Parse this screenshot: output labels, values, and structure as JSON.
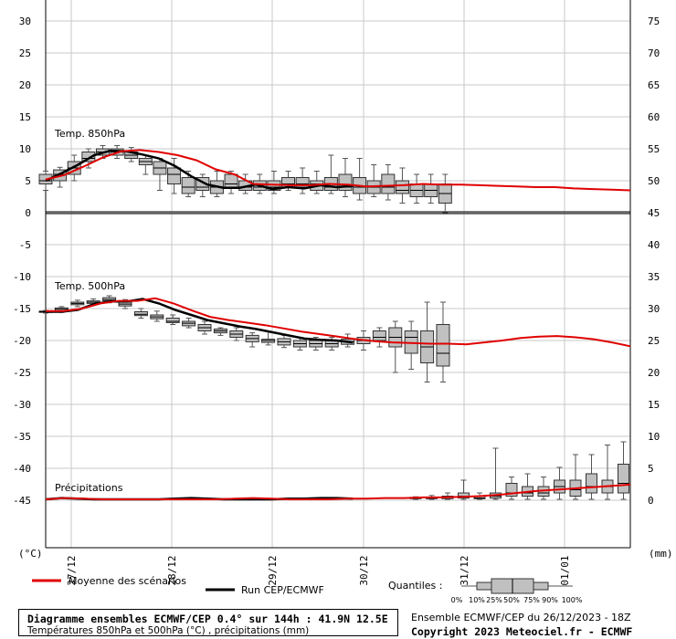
{
  "chart_data": {
    "type": "boxplot",
    "left_axis": {
      "label": "(°C)",
      "ticks": [
        30,
        25,
        20,
        15,
        10,
        5,
        0,
        -5,
        -10,
        -15,
        -20,
        -25,
        -30,
        -35,
        -40,
        -45
      ]
    },
    "right_axis": {
      "label": "(mm)",
      "ticks": [
        75,
        70,
        65,
        60,
        55,
        50,
        45,
        40,
        35,
        30,
        25,
        20,
        15,
        10,
        5,
        0
      ]
    },
    "x_labels": [
      "27/12",
      "28/12",
      "29/12",
      "30/12",
      "31/12",
      "01/01"
    ],
    "grid": true,
    "panels": [
      {
        "label": "Temp. 850hPa",
        "mean": [
          5.2,
          5.9,
          7.2,
          8.6,
          9.6,
          9.8,
          9.5,
          9.0,
          8.2,
          6.8,
          6.0,
          4.5,
          4.4,
          4.3,
          4.3,
          4.5,
          4.4,
          4.1,
          4.2,
          4.3,
          4.5,
          4.4,
          4.4,
          4.3,
          4.2,
          4.1,
          4.0,
          4.0,
          3.8,
          3.7,
          3.6,
          3.5
        ],
        "control": [
          5.0,
          6.2,
          7.5,
          9.0,
          9.7,
          9.6,
          9.1,
          8.5,
          7.3,
          5.7,
          4.4,
          3.9,
          3.9,
          4.4,
          3.7,
          4.0,
          3.8,
          4.3,
          4.0,
          4.2
        ],
        "boxes": [
          [
            3.5,
            4.5,
            5.0,
            6.0,
            6.5
          ],
          [
            4.0,
            5.0,
            6.0,
            6.7,
            7.1
          ],
          [
            5.0,
            6.0,
            7.0,
            8.0,
            9.0
          ],
          [
            7.0,
            8.0,
            8.5,
            9.5,
            10.0
          ],
          [
            8.5,
            9.0,
            9.5,
            10.0,
            10.5
          ],
          [
            8.5,
            9.0,
            9.5,
            10.0,
            10.5
          ],
          [
            8.0,
            8.5,
            9.0,
            9.5,
            10.2
          ],
          [
            6.0,
            7.5,
            8.0,
            8.5,
            9.0
          ],
          [
            3.5,
            6.0,
            7.0,
            8.0,
            8.5
          ],
          [
            3.0,
            4.5,
            6.0,
            7.0,
            8.5
          ],
          [
            2.5,
            3.0,
            4.0,
            5.5,
            6.5
          ],
          [
            2.5,
            3.5,
            4.0,
            5.5,
            6.0
          ],
          [
            2.5,
            3.0,
            4.0,
            5.0,
            6.5
          ],
          [
            3.0,
            4.0,
            4.5,
            6.0,
            6.5
          ],
          [
            3.0,
            3.5,
            4.0,
            5.0,
            6.0
          ],
          [
            3.0,
            3.5,
            4.0,
            5.0,
            6.0
          ],
          [
            3.0,
            3.5,
            4.0,
            5.0,
            6.5
          ],
          [
            3.5,
            4.0,
            4.5,
            5.5,
            6.5
          ],
          [
            3.0,
            4.0,
            4.5,
            5.5,
            7.0
          ],
          [
            3.0,
            3.5,
            4.5,
            5.0,
            6.5
          ],
          [
            3.0,
            3.5,
            4.0,
            5.5,
            9.0
          ],
          [
            2.5,
            3.5,
            4.0,
            6.0,
            8.5
          ],
          [
            2.0,
            3.0,
            4.0,
            5.5,
            8.5
          ],
          [
            2.5,
            3.0,
            4.0,
            5.0,
            7.5
          ],
          [
            2.0,
            3.0,
            4.0,
            6.0,
            7.5
          ],
          [
            1.5,
            3.0,
            3.5,
            5.0,
            7.0
          ],
          [
            1.5,
            2.5,
            3.5,
            4.5,
            6.0
          ],
          [
            1.5,
            2.5,
            3.5,
            4.5,
            6.0
          ],
          [
            0.0,
            1.5,
            3.0,
            4.5,
            6.0
          ]
        ]
      },
      {
        "label": "Temp. 500hPa",
        "mean": [
          -15.4,
          -15.4,
          -15.0,
          -14.2,
          -13.8,
          -13.8,
          -13.4,
          -14.2,
          -15.3,
          -16.3,
          -16.8,
          -17.2,
          -17.6,
          -18.1,
          -18.6,
          -19.0,
          -19.4,
          -19.8,
          -20.1,
          -20.3,
          -20.4,
          -20.5,
          -20.5,
          -20.6,
          -20.3,
          -20.0,
          -19.6,
          -19.4,
          -19.3,
          -19.5,
          -19.8,
          -20.3,
          -20.9
        ],
        "control": [
          -15.5,
          -15.5,
          -15.2,
          -14.3,
          -13.9,
          -13.9,
          -13.5,
          -14.2,
          -15.2,
          -16.0,
          -16.8,
          -17.3,
          -17.8,
          -18.2,
          -18.7,
          -19.2,
          -19.7,
          -19.9,
          -20.0,
          -20.3
        ],
        "boxes": [
          [
            -15.7,
            -15.6,
            -15.5,
            -15.4,
            -15.3
          ],
          [
            -15.6,
            -15.4,
            -15.1,
            -14.9,
            -14.7
          ],
          [
            -14.7,
            -14.4,
            -14.2,
            -14.0,
            -13.7
          ],
          [
            -14.5,
            -14.2,
            -14.0,
            -13.8,
            -13.5
          ],
          [
            -14.1,
            -13.8,
            -13.6,
            -13.3,
            -13.0
          ],
          [
            -15.0,
            -14.6,
            -14.3,
            -14.0,
            -13.6
          ],
          [
            -16.5,
            -16.1,
            -15.9,
            -15.5,
            -15.0
          ],
          [
            -17.0,
            -16.6,
            -16.3,
            -16.0,
            -15.4
          ],
          [
            -17.5,
            -17.2,
            -17.0,
            -16.5,
            -16.0
          ],
          [
            -18.0,
            -17.7,
            -17.3,
            -17.0,
            -16.5
          ],
          [
            -19.0,
            -18.5,
            -18.0,
            -17.5,
            -17.0
          ],
          [
            -19.2,
            -18.8,
            -18.5,
            -18.2,
            -18.0
          ],
          [
            -20.0,
            -19.5,
            -19.0,
            -18.5,
            -18.0
          ],
          [
            -21.0,
            -20.2,
            -19.7,
            -19.2,
            -18.8
          ],
          [
            -20.7,
            -20.3,
            -20.0,
            -19.8,
            -18.6
          ],
          [
            -21.1,
            -20.7,
            -20.2,
            -19.7,
            -19.2
          ],
          [
            -21.5,
            -21.0,
            -20.5,
            -20.0,
            -19.5
          ],
          [
            -21.5,
            -21.0,
            -20.5,
            -20.0,
            -19.5
          ],
          [
            -21.5,
            -21.0,
            -20.5,
            -20.0,
            -19.5
          ],
          [
            -21.0,
            -20.6,
            -20.2,
            -19.8,
            -19.0
          ],
          [
            -21.5,
            -20.5,
            -20.0,
            -19.5,
            -18.5
          ],
          [
            -21.0,
            -20.0,
            -19.5,
            -18.5,
            -18.0
          ],
          [
            -25.0,
            -21.0,
            -19.5,
            -18.0,
            -17.0
          ],
          [
            -24.5,
            -22.0,
            -19.5,
            -18.5,
            -17.0
          ],
          [
            -26.5,
            -23.5,
            -21.0,
            -18.5,
            -14.0
          ],
          [
            -26.5,
            -24.0,
            -22.0,
            -17.5,
            -14.0
          ]
        ]
      },
      {
        "label": "Précipitations",
        "mean": [
          0.0,
          0.2,
          0.1,
          0.0,
          0.0,
          0.0,
          0.0,
          0.0,
          0.0,
          0.0,
          0.1,
          0.2,
          0.1,
          0.0,
          0.0,
          0.0,
          0.1,
          0.1,
          0.2,
          0.2,
          0.3,
          0.3,
          0.4,
          0.5,
          0.7,
          1.0,
          1.3,
          1.5,
          1.7,
          1.9,
          2.1,
          2.3
        ],
        "control": [
          0.0,
          0.2,
          0.1,
          0.0,
          0.0,
          0.0,
          0.0,
          0.0,
          0.1,
          0.2,
          0.1,
          0.0,
          0.0,
          0.0,
          0.0,
          0.1,
          0.1,
          0.2,
          0.2,
          0.1
        ],
        "boxes": [
          [
            0.0,
            0.1,
            0.2,
            0.3,
            0.4
          ],
          [
            0.0,
            0.1,
            0.2,
            0.3,
            0.6
          ],
          [
            0.0,
            0.1,
            0.3,
            0.5,
            1.0
          ],
          [
            0.0,
            0.2,
            0.5,
            1.0,
            3.0
          ],
          [
            0.0,
            0.1,
            0.2,
            0.5,
            1.0
          ],
          [
            0.0,
            0.2,
            0.5,
            1.0,
            8.0
          ],
          [
            0.0,
            0.5,
            1.0,
            2.5,
            3.5
          ],
          [
            0.0,
            0.5,
            1.0,
            2.0,
            4.0
          ],
          [
            0.0,
            0.5,
            1.0,
            2.0,
            3.5
          ],
          [
            0.0,
            1.0,
            2.0,
            3.0,
            5.0
          ],
          [
            0.0,
            0.5,
            1.5,
            3.0,
            7.0
          ],
          [
            0.0,
            1.0,
            2.0,
            4.0,
            7.0
          ],
          [
            0.0,
            1.0,
            2.0,
            3.0,
            8.5
          ],
          [
            0.0,
            1.0,
            2.5,
            5.5,
            9.0
          ]
        ]
      }
    ],
    "legend": {
      "mean_label": "Moyenne des scénarios",
      "control_label": "Run CEP/ECMWF",
      "quantiles_label": "Quantiles :",
      "quantile_marks": [
        "0%",
        "10%",
        "25%",
        "50%",
        "75%",
        "90%",
        "100%"
      ],
      "colors": {
        "mean": "#e00000",
        "control": "#000000",
        "box": "#c0c0c0"
      }
    }
  },
  "footer": {
    "title": "Diagramme ensembles ECMWF/CEP 0.4° sur 144h : 41.9N 12.5E",
    "subtitle": "Températures 850hPa et 500hPa (°C) , précipitations (mm)",
    "run_info": "Ensemble ECMWF/CEP du 26/12/2023 - 18Z",
    "copyright": "Copyright 2023 Meteociel.fr - ECMWF"
  }
}
